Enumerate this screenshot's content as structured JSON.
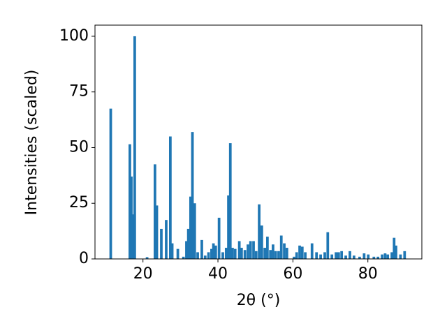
{
  "chart_data": {
    "type": "bar",
    "xlabel": "2θ (°)",
    "ylabel": "Intensities (scaled)",
    "color": "#1f77b4",
    "x": [
      11.4,
      16.5,
      16.9,
      17.2,
      17.8,
      21.1,
      23.2,
      23.7,
      24.9,
      26.2,
      27.3,
      27.8,
      29.3,
      30.8,
      31.6,
      32.1,
      32.7,
      33.2,
      33.8,
      34.6,
      35.7,
      36.6,
      37.5,
      38.3,
      38.8,
      39.4,
      40.3,
      41.3,
      42.2,
      42.8,
      43.3,
      43.9,
      44.6,
      45.7,
      46.3,
      47.2,
      48.0,
      48.7,
      49.5,
      50.2,
      51.0,
      51.7,
      52.5,
      53.2,
      54.0,
      54.7,
      55.4,
      56.2,
      56.9,
      57.7,
      58.4,
      60.3,
      61.0,
      61.8,
      62.5,
      63.3,
      65.1,
      66.3,
      67.4,
      68.5,
      69.3,
      70.4,
      71.5,
      72.2,
      73.0,
      74.1,
      75.2,
      76.3,
      77.8,
      79.0,
      80.1,
      81.6,
      82.7,
      83.8,
      84.6,
      85.3,
      86.4,
      87.0,
      87.5,
      88.7,
      89.8
    ],
    "values": [
      67.5,
      51.5,
      37,
      20,
      100,
      0.8,
      42.5,
      24,
      13.5,
      17.5,
      55,
      7,
      4.5,
      1,
      8,
      13.5,
      28,
      57,
      25,
      3,
      8.5,
      1.5,
      3,
      4.5,
      7,
      6,
      18.5,
      3,
      5,
      28.5,
      52,
      5,
      4.5,
      8,
      5,
      4,
      6.5,
      8,
      8,
      3.5,
      24.5,
      15,
      5,
      10,
      4,
      6.5,
      3.5,
      3.5,
      10.5,
      7,
      5,
      1,
      3,
      6,
      5.5,
      3,
      7,
      3,
      2,
      3,
      12,
      2,
      3,
      3,
      3.5,
      1.5,
      3.5,
      1.5,
      1,
      2.5,
      2,
      1,
      1,
      2,
      2.5,
      2,
      3,
      9.5,
      6,
      2,
      3.5
    ],
    "xlim": [
      7.2,
      94.4
    ],
    "ylim": [
      0,
      105
    ],
    "xticks": [
      20,
      40,
      60,
      80
    ],
    "yticks": [
      0,
      25,
      50,
      75,
      100
    ]
  }
}
